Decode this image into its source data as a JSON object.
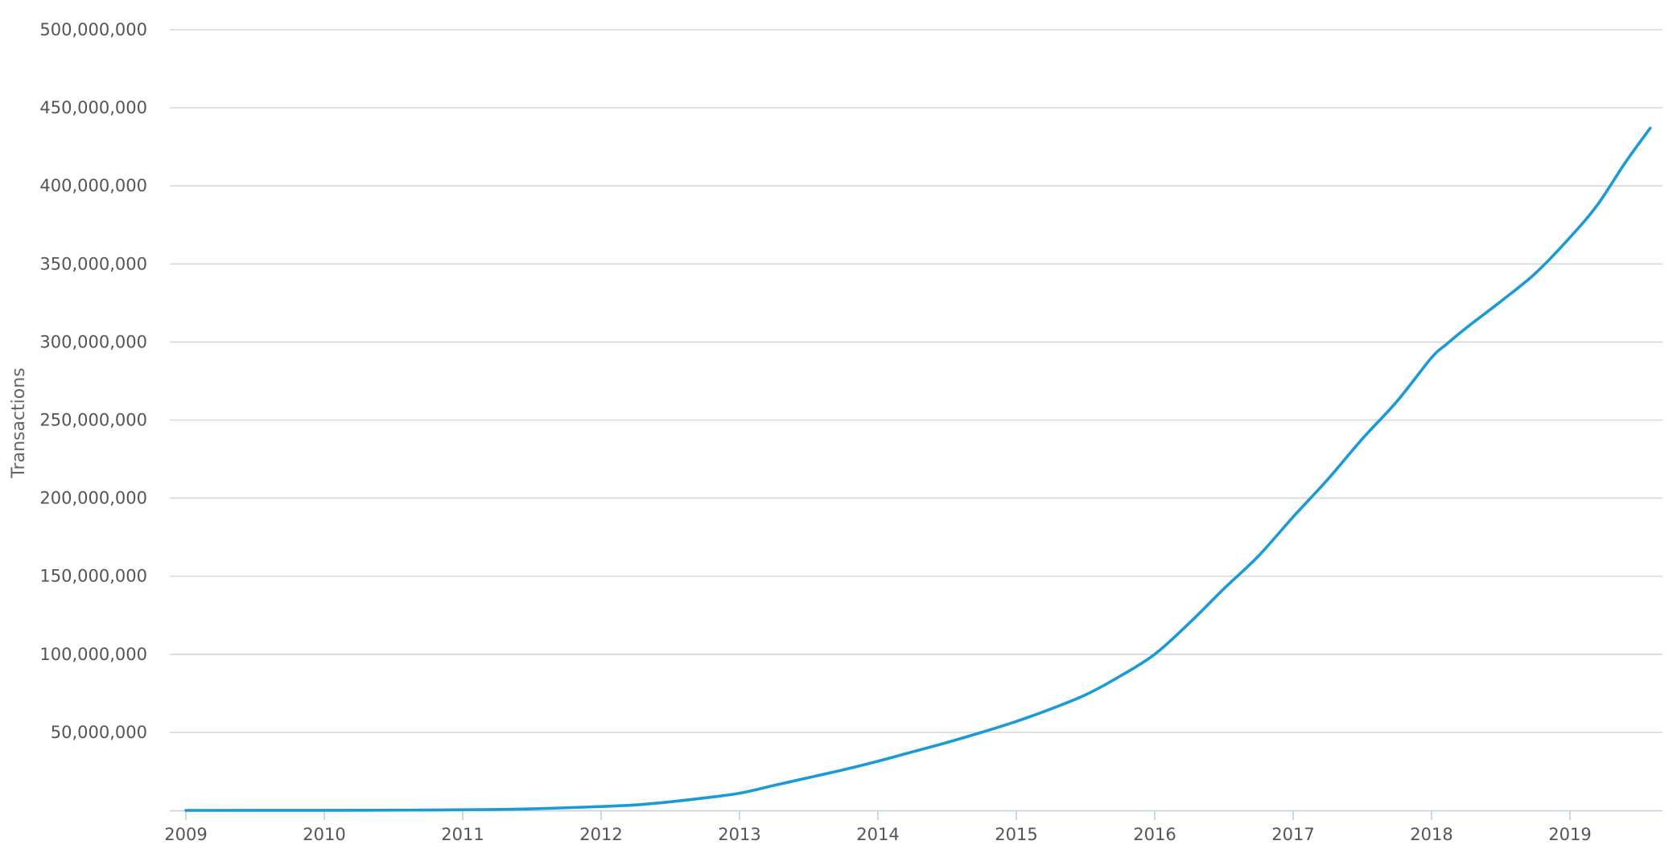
{
  "chart_data": {
    "type": "line",
    "title": "",
    "xlabel": "",
    "ylabel": "Transactions",
    "xlim": [
      2009.0,
      2019.65
    ],
    "ylim": [
      0,
      500000000
    ],
    "grid": true,
    "x_ticks": [
      "2009",
      "2010",
      "2011",
      "2012",
      "2013",
      "2014",
      "2015",
      "2016",
      "2017",
      "2018",
      "2019"
    ],
    "y_ticks": [
      "50,000,000",
      "100,000,000",
      "150,000,000",
      "200,000,000",
      "250,000,000",
      "300,000,000",
      "350,000,000",
      "400,000,000",
      "450,000,000",
      "500,000,000"
    ],
    "series": [
      {
        "color": "#1a9ad6",
        "x": [
          2009.0,
          2010.0,
          2010.5,
          2011.0,
          2011.5,
          2012.0,
          2012.25,
          2012.5,
          2012.75,
          2013.0,
          2013.25,
          2013.5,
          2013.75,
          2014.0,
          2014.25,
          2014.5,
          2014.75,
          2015.0,
          2015.25,
          2015.5,
          2015.75,
          2016.0,
          2016.25,
          2016.5,
          2016.75,
          2017.0,
          2017.25,
          2017.5,
          2017.75,
          2018.0,
          2018.1,
          2018.25,
          2018.5,
          2018.75,
          2019.0,
          2019.2,
          2019.4,
          2019.58
        ],
        "y": [
          0,
          50000,
          150000,
          400000,
          1000000,
          2500000,
          3500000,
          5500000,
          8000000,
          11000000,
          16000000,
          21000000,
          26000000,
          31500000,
          37500000,
          43500000,
          50000000,
          57000000,
          65000000,
          74000000,
          86000000,
          100000000,
          120000000,
          142000000,
          163000000,
          188000000,
          212000000,
          238000000,
          262000000,
          290000000,
          298000000,
          309000000,
          326000000,
          344000000,
          367000000,
          388000000,
          415000000,
          437000000
        ]
      }
    ]
  }
}
